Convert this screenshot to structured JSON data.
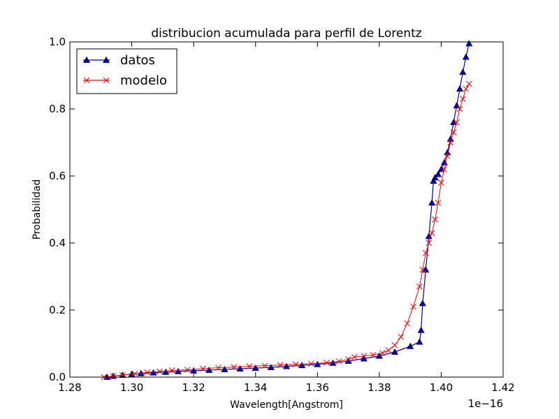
{
  "chart_data": {
    "type": "line",
    "title": "distribucion acumulada para perfil de Lorentz",
    "xlabel": "Wavelength[Angstrom]",
    "ylabel": "Probabilidad",
    "x_offset_label": "1e−16",
    "xlim": [
      1.28,
      1.42
    ],
    "ylim": [
      0.0,
      1.0
    ],
    "xticks": [
      1.28,
      1.3,
      1.32,
      1.34,
      1.36,
      1.38,
      1.4,
      1.42
    ],
    "xtick_labels": [
      "1.28",
      "1.30",
      "1.32",
      "1.34",
      "1.36",
      "1.38",
      "1.40",
      "1.42"
    ],
    "yticks": [
      0.0,
      0.2,
      0.4,
      0.6,
      0.8,
      1.0
    ],
    "ytick_labels": [
      "0.0",
      "0.2",
      "0.4",
      "0.6",
      "0.8",
      "1.0"
    ],
    "grid": false,
    "legend_position": "top-left",
    "series": [
      {
        "name": "datos",
        "color": "#0000bf",
        "marker": "triangle",
        "x": [
          1.292,
          1.294,
          1.297,
          1.3,
          1.303,
          1.307,
          1.311,
          1.315,
          1.32,
          1.325,
          1.33,
          1.335,
          1.34,
          1.345,
          1.35,
          1.355,
          1.36,
          1.365,
          1.37,
          1.375,
          1.38,
          1.385,
          1.39,
          1.393,
          1.3935,
          1.394,
          1.395,
          1.396,
          1.397,
          1.3975,
          1.398,
          1.399,
          1.4,
          1.401,
          1.402,
          1.403,
          1.404,
          1.405,
          1.406,
          1.407,
          1.408,
          1.409
        ],
        "y": [
          0.0,
          0.003,
          0.006,
          0.009,
          0.011,
          0.013,
          0.015,
          0.017,
          0.019,
          0.021,
          0.023,
          0.025,
          0.027,
          0.029,
          0.032,
          0.035,
          0.038,
          0.042,
          0.048,
          0.055,
          0.063,
          0.075,
          0.092,
          0.105,
          0.14,
          0.22,
          0.32,
          0.42,
          0.52,
          0.585,
          0.595,
          0.605,
          0.62,
          0.64,
          0.67,
          0.71,
          0.76,
          0.81,
          0.86,
          0.91,
          0.955,
          0.995
        ]
      },
      {
        "name": "modelo",
        "color": "#ff0000",
        "marker": "x",
        "x": [
          1.291,
          1.294,
          1.297,
          1.301,
          1.305,
          1.309,
          1.313,
          1.318,
          1.323,
          1.328,
          1.333,
          1.338,
          1.343,
          1.348,
          1.353,
          1.358,
          1.363,
          1.367,
          1.37,
          1.372,
          1.375,
          1.378,
          1.381,
          1.383,
          1.385,
          1.387,
          1.389,
          1.391,
          1.393,
          1.394,
          1.395,
          1.396,
          1.397,
          1.398,
          1.399,
          1.4,
          1.401,
          1.402,
          1.403,
          1.404,
          1.405,
          1.406,
          1.407,
          1.408,
          1.409
        ],
        "y": [
          0.0,
          0.003,
          0.006,
          0.01,
          0.014,
          0.017,
          0.02,
          0.022,
          0.025,
          0.028,
          0.03,
          0.032,
          0.034,
          0.036,
          0.038,
          0.04,
          0.043,
          0.047,
          0.053,
          0.06,
          0.063,
          0.066,
          0.072,
          0.08,
          0.095,
          0.12,
          0.16,
          0.21,
          0.27,
          0.32,
          0.37,
          0.4,
          0.43,
          0.47,
          0.52,
          0.58,
          0.62,
          0.66,
          0.7,
          0.73,
          0.76,
          0.8,
          0.83,
          0.86,
          0.875
        ]
      }
    ]
  }
}
